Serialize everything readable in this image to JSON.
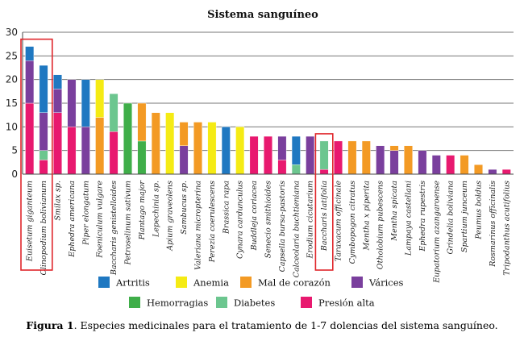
{
  "chart_data": {
    "type": "bar",
    "stacked": true,
    "title": "Sistema sanguíneo",
    "ylim": [
      0,
      30
    ],
    "yticks": [
      0,
      5,
      10,
      15,
      20,
      25,
      30
    ],
    "grid": true,
    "legend_position": "bottom",
    "categories": [
      "Euisetum giganteum",
      "Clinopodium bolivianum",
      "Smilax sp.",
      "Ephedra americana",
      "Piper elongatum",
      "Foeniculum vulgare",
      "Baccharis genistelloides",
      "Petroselinum sativum",
      "Plantago major",
      "Lepechinia sp.",
      "Apium graveolens",
      "Sambucus sp.",
      "Valeriana micropterina",
      "Perezia coerulescens",
      "Brassica rapa",
      "Cynara cardunculus",
      "Buddleja coriacea",
      "Senecio smithioides",
      "Capsella bursa-pastoris",
      "Calceolaria buchtieniana",
      "Erodium cicutarium",
      "Baccharis latifolia",
      "Taraxacum officinale",
      "Cymbopogon citratus",
      "Mentha x piperita",
      "Otholobium pubescens",
      "Mentha spicata",
      "Lampaya castellani",
      "Ephedra rupestris",
      "Eupatorium azangaroense",
      "Grindelia boliviana",
      "Spartium junceum",
      "Peumus boldus",
      "Rosmarinus officinalis",
      "Tripodanthus acutifolius"
    ],
    "highlighted": [
      "Euisetum giganteum",
      "Clinopodium bolivianum",
      "Baccharis latifolia"
    ],
    "series": [
      {
        "name": "Presión alta",
        "color": "#e8196f",
        "values": [
          15,
          3,
          13,
          10,
          0,
          0,
          9,
          0,
          0,
          0,
          0,
          0,
          0,
          0,
          0,
          0,
          8,
          8,
          3,
          0,
          0,
          1,
          7,
          0,
          0,
          0,
          0,
          0,
          0,
          0,
          4,
          0,
          0,
          0,
          1
        ]
      },
      {
        "name": "Diabetes",
        "color": "#6cc68f",
        "values": [
          0,
          2,
          0,
          0,
          0,
          0,
          8,
          0,
          0,
          0,
          0,
          0,
          0,
          0,
          0,
          0,
          0,
          0,
          0,
          2,
          0,
          6,
          0,
          0,
          0,
          0,
          0,
          0,
          0,
          0,
          0,
          0,
          0,
          0,
          0
        ]
      },
      {
        "name": "Hemorragias",
        "color": "#3fae49",
        "values": [
          0,
          0,
          0,
          0,
          0,
          0,
          0,
          15,
          7,
          0,
          0,
          0,
          0,
          0,
          0,
          0,
          0,
          0,
          0,
          0,
          0,
          0,
          0,
          0,
          0,
          0,
          0,
          0,
          0,
          0,
          0,
          0,
          0,
          0,
          0
        ]
      },
      {
        "name": "Várices",
        "color": "#7a3f9d",
        "values": [
          9,
          8,
          5,
          10,
          10,
          0,
          0,
          0,
          0,
          0,
          0,
          6,
          0,
          0,
          0,
          0,
          0,
          0,
          5,
          0,
          8,
          0,
          0,
          0,
          0,
          6,
          5,
          0,
          5,
          4,
          0,
          0,
          0,
          1,
          0
        ]
      },
      {
        "name": "Mal de corazón",
        "color": "#f39a24",
        "values": [
          0,
          0,
          0,
          0,
          0,
          12,
          0,
          0,
          8,
          13,
          0,
          5,
          11,
          0,
          0,
          0,
          0,
          0,
          0,
          0,
          0,
          0,
          0,
          7,
          7,
          0,
          1,
          6,
          0,
          0,
          0,
          4,
          2,
          0,
          0
        ]
      },
      {
        "name": "Anemia",
        "color": "#f5eb14",
        "values": [
          0,
          0,
          0,
          0,
          0,
          8,
          0,
          0,
          0,
          0,
          13,
          0,
          0,
          11,
          0,
          10,
          0,
          0,
          0,
          0,
          0,
          0,
          0,
          0,
          0,
          0,
          0,
          0,
          0,
          0,
          0,
          0,
          0,
          0,
          0
        ]
      },
      {
        "name": "Artritis",
        "color": "#1f78c1",
        "values": [
          3,
          10,
          3,
          0,
          10,
          0,
          0,
          0,
          0,
          0,
          0,
          0,
          0,
          0,
          10,
          0,
          0,
          0,
          0,
          6,
          0,
          0,
          0,
          0,
          0,
          0,
          0,
          0,
          0,
          0,
          0,
          0,
          0,
          0,
          0
        ]
      }
    ],
    "legend": [
      "Artritis",
      "Anemia",
      "Mal de corazón",
      "Várices",
      "Hemorragias",
      "Diabetes",
      "Presión alta"
    ]
  },
  "caption": {
    "label": "Figura 1",
    "text": ". Especies medicinales para el tratamiento de 1-7 dolencias del sistema sanguíneo."
  }
}
